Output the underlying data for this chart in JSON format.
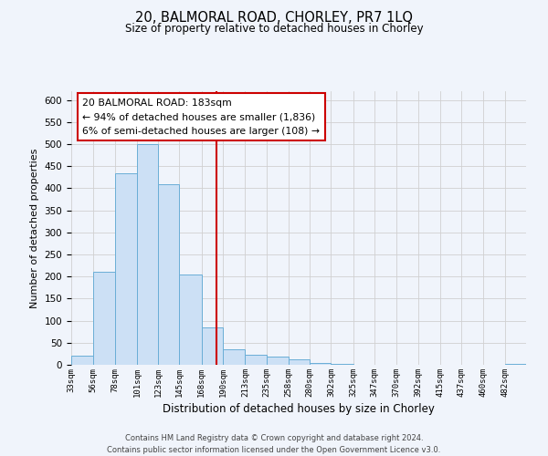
{
  "title_line1": "20, BALMORAL ROAD, CHORLEY, PR7 1LQ",
  "title_line2": "Size of property relative to detached houses in Chorley",
  "xlabel": "Distribution of detached houses by size in Chorley",
  "ylabel": "Number of detached properties",
  "bin_labels": [
    "33sqm",
    "56sqm",
    "78sqm",
    "101sqm",
    "123sqm",
    "145sqm",
    "168sqm",
    "190sqm",
    "213sqm",
    "235sqm",
    "258sqm",
    "280sqm",
    "302sqm",
    "325sqm",
    "347sqm",
    "370sqm",
    "392sqm",
    "415sqm",
    "437sqm",
    "460sqm",
    "482sqm"
  ],
  "bin_edges": [
    33,
    56,
    78,
    101,
    123,
    145,
    168,
    190,
    213,
    235,
    258,
    280,
    302,
    325,
    347,
    370,
    392,
    415,
    437,
    460,
    482
  ],
  "bar_values": [
    20,
    210,
    435,
    500,
    410,
    205,
    85,
    35,
    22,
    18,
    12,
    5,
    2,
    1,
    1,
    0,
    0,
    0,
    0,
    0,
    2
  ],
  "bar_color": "#cce0f5",
  "bar_edge_color": "#6aaed6",
  "vline_x": 183,
  "vline_color": "#cc0000",
  "ylim": [
    0,
    620
  ],
  "yticks": [
    0,
    50,
    100,
    150,
    200,
    250,
    300,
    350,
    400,
    450,
    500,
    550,
    600
  ],
  "grid_color": "#d0d0d0",
  "annotation_title": "20 BALMORAL ROAD: 183sqm",
  "annotation_line1": "← 94% of detached houses are smaller (1,836)",
  "annotation_line2": "6% of semi-detached houses are larger (108) →",
  "annotation_box_color": "#ffffff",
  "annotation_box_edge": "#cc0000",
  "footer_line1": "Contains HM Land Registry data © Crown copyright and database right 2024.",
  "footer_line2": "Contains public sector information licensed under the Open Government Licence v3.0.",
  "bg_color": "#f0f4fb",
  "fig_width": 6.0,
  "fig_height": 5.0,
  "fig_dpi": 100
}
